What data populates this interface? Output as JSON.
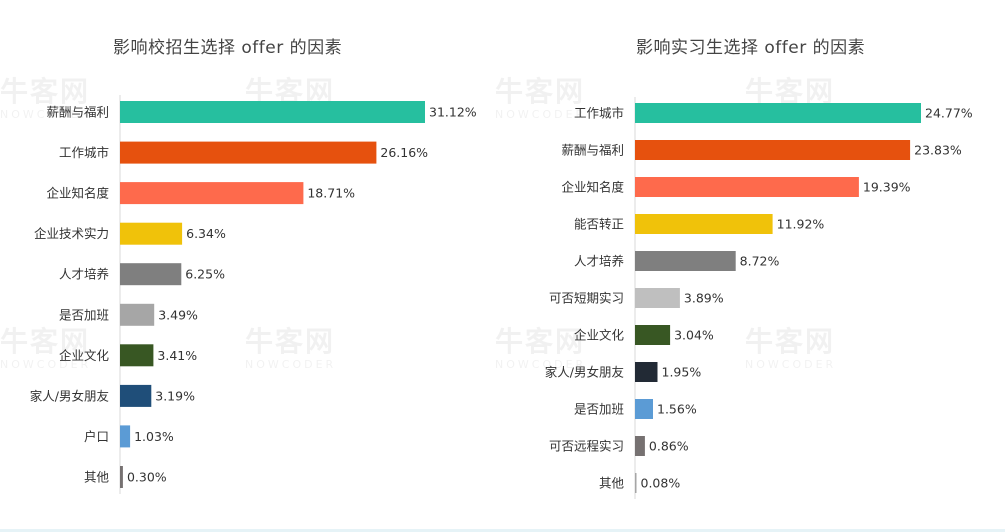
{
  "colors": {
    "teal": "#26bf9f",
    "orange": "#e6510e",
    "salmon": "#fe6a4c",
    "yellow": "#f0c20a",
    "gray": "#7f7f7f",
    "lightgray": "#a6a6a6",
    "green": "#385723",
    "navy": "#1f4e79",
    "blue": "#5b9bd5",
    "darkgray": "#767171",
    "verylightgray": "#bfbfbf",
    "darknavy": "#222a35"
  },
  "watermark": {
    "logo": "牛客网",
    "sub": "NOWCODER"
  },
  "chart_data": [
    {
      "type": "bar",
      "orientation": "horizontal",
      "title": "影响校招生选择 offer 的因素",
      "xlim": [
        0,
        31.12
      ],
      "grid": false,
      "categories": [
        "薪酬与福利",
        "工作城市",
        "企业知名度",
        "企业技术实力",
        "人才培养",
        "是否加班",
        "企业文化",
        "家人/男女朋友",
        "户口",
        "其他"
      ],
      "values": [
        31.12,
        26.16,
        18.71,
        6.34,
        6.25,
        3.49,
        3.41,
        3.19,
        1.03,
        0.3
      ],
      "value_labels": [
        "31.12%",
        "26.16%",
        "18.71%",
        "6.34%",
        "6.25%",
        "3.49%",
        "3.41%",
        "3.19%",
        "1.03%",
        "0.30%"
      ],
      "bar_colors": [
        "#26bf9f",
        "#e6510e",
        "#fe6a4c",
        "#f0c20a",
        "#7f7f7f",
        "#a6a6a6",
        "#385723",
        "#1f4e79",
        "#5b9bd5",
        "#767171"
      ]
    },
    {
      "type": "bar",
      "orientation": "horizontal",
      "title": "影响实习生选择 offer 的因素",
      "xlim": [
        0,
        24.77
      ],
      "grid": false,
      "categories": [
        "工作城市",
        "薪酬与福利",
        "企业知名度",
        "能否转正",
        "人才培养",
        "可否短期实习",
        "企业文化",
        "家人/男女朋友",
        "是否加班",
        "可否远程实习",
        "其他"
      ],
      "values": [
        24.77,
        23.83,
        19.39,
        11.92,
        8.72,
        3.89,
        3.04,
        1.95,
        1.56,
        0.86,
        0.08
      ],
      "value_labels": [
        "24.77%",
        "23.83%",
        "19.39%",
        "11.92%",
        "8.72%",
        "3.89%",
        "3.04%",
        "1.95%",
        "1.56%",
        "0.86%",
        "0.08%"
      ],
      "bar_colors": [
        "#26bf9f",
        "#e6510e",
        "#fe6a4c",
        "#f0c20a",
        "#7f7f7f",
        "#bfbfbf",
        "#385723",
        "#222a35",
        "#5b9bd5",
        "#767171",
        "#a6a6a6"
      ]
    }
  ]
}
